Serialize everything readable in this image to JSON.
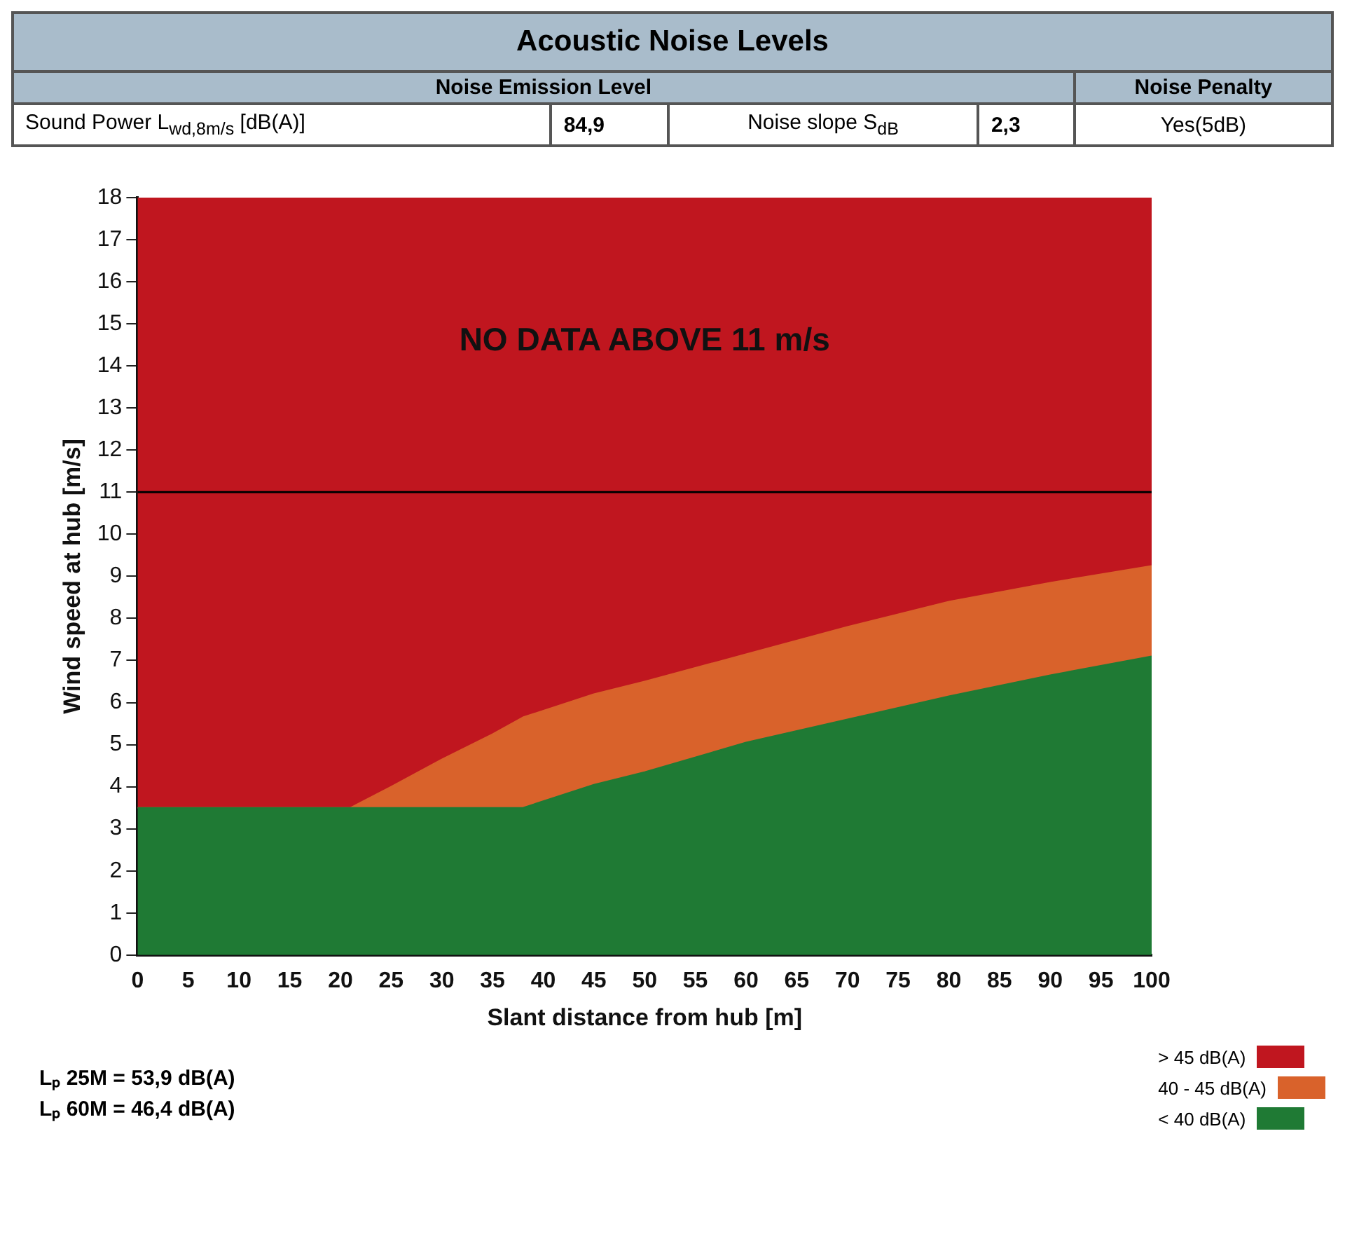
{
  "chart_data": {
    "type": "area",
    "title": "Acoustic Noise Levels",
    "xlabel": "Slant distance from hub [m]",
    "ylabel": "Wind speed at hub [m/s]",
    "x": [
      0,
      10,
      20,
      21,
      25,
      30,
      35,
      38,
      45,
      50,
      60,
      70,
      80,
      90,
      100
    ],
    "stacked": true,
    "series": [
      {
        "name": "< 40 dB(A)",
        "color": "#1f7a34",
        "values": [
          3.5,
          3.5,
          3.5,
          3.5,
          3.5,
          3.5,
          3.5,
          3.5,
          4.05,
          4.35,
          5.05,
          5.6,
          6.15,
          6.65,
          7.1
        ]
      },
      {
        "name": "40 - 45 dB(A)",
        "color": "#d9622b",
        "values": [
          0,
          0,
          0,
          0,
          0.5,
          1.15,
          1.75,
          2.15,
          2.15,
          2.15,
          2.1,
          2.2,
          2.25,
          2.2,
          2.15
        ]
      },
      {
        "name": "> 45 dB(A)",
        "color": "#c0161f",
        "values": [
          14.5,
          14.5,
          14.5,
          14.5,
          14,
          13.35,
          12.75,
          12.35,
          11.8,
          11.5,
          10.85,
          10.2,
          9.6,
          9.15,
          8.75
        ]
      }
    ],
    "xlim": [
      0,
      100
    ],
    "xticks": [
      0,
      5,
      10,
      15,
      20,
      25,
      30,
      35,
      40,
      45,
      50,
      55,
      60,
      65,
      70,
      75,
      80,
      85,
      90,
      95,
      100
    ],
    "ylim": [
      0,
      18
    ],
    "yticks": [
      0,
      1,
      2,
      3,
      4,
      5,
      6,
      7,
      8,
      9,
      10,
      11,
      12,
      13,
      14,
      15,
      16,
      17,
      18
    ],
    "ref_lines": [
      {
        "axis": "y",
        "value": 11,
        "color": "#000000"
      }
    ],
    "marker": "none",
    "legend": "bottom right",
    "annotations": [
      "Noise Emission Level",
      "Noise Penalty",
      "Sound Power L$_{wd,8m/s}$ [dB(A)]",
      "84,9",
      "Noise slope S$_{dB}$",
      "2,3",
      "Yes(5dB)",
      "NO DATA ABOVE 11 m/s",
      "Lₚ 25M = 53,9 dB(A)",
      "Lₚ 60M = 46,4 dB(A)"
    ]
  }
}
